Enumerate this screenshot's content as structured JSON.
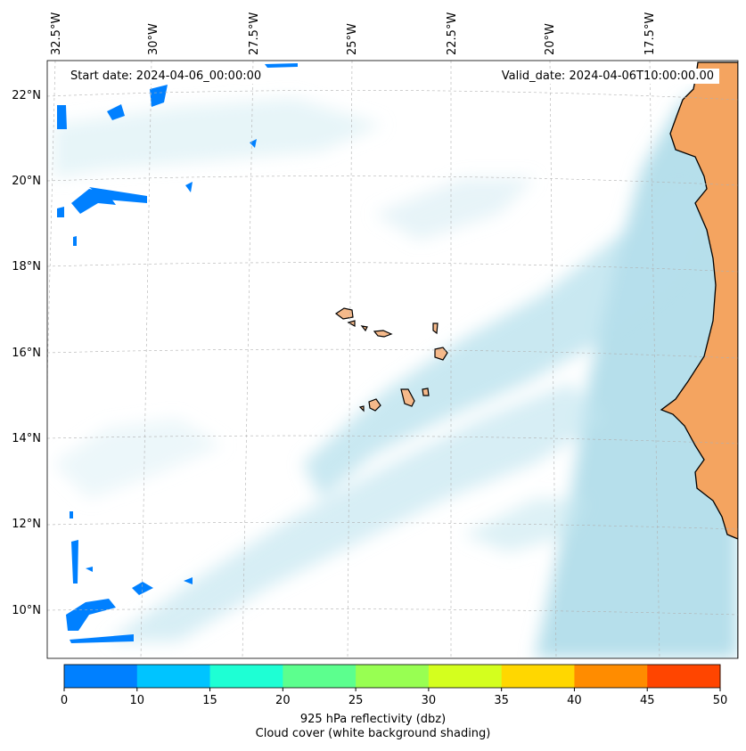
{
  "header": {
    "start_date": "Start date: 2024-04-06_00:00:00",
    "valid_date": "Valid_date: 2024-04-06T10:00:00.00"
  },
  "map": {
    "longitude_labels": [
      "32.5°W",
      "30°W",
      "27.5°W",
      "25°W",
      "22.5°W",
      "20°W",
      "17.5°W"
    ],
    "latitude_labels": [
      "22°N",
      "20°N",
      "18°N",
      "16°N",
      "14°N",
      "12°N",
      "10°N"
    ],
    "land_color": "#f4a460",
    "island_color": "#f5b98a",
    "cloud_color": "#a8d8e6",
    "reflectivity_color": "#0080ff"
  },
  "colorbar": {
    "ticks": [
      "0",
      "10",
      "15",
      "20",
      "25",
      "30",
      "35",
      "40",
      "45",
      "50"
    ],
    "colors": [
      "#0080ff",
      "#00c4ff",
      "#1effd4",
      "#5cff8e",
      "#98ff52",
      "#d4ff1e",
      "#ffd700",
      "#ff8c00",
      "#ff4500"
    ],
    "label_line1": "925 hPa reflectivity (dbz)",
    "label_line2": "Cloud cover (white background shading)"
  }
}
